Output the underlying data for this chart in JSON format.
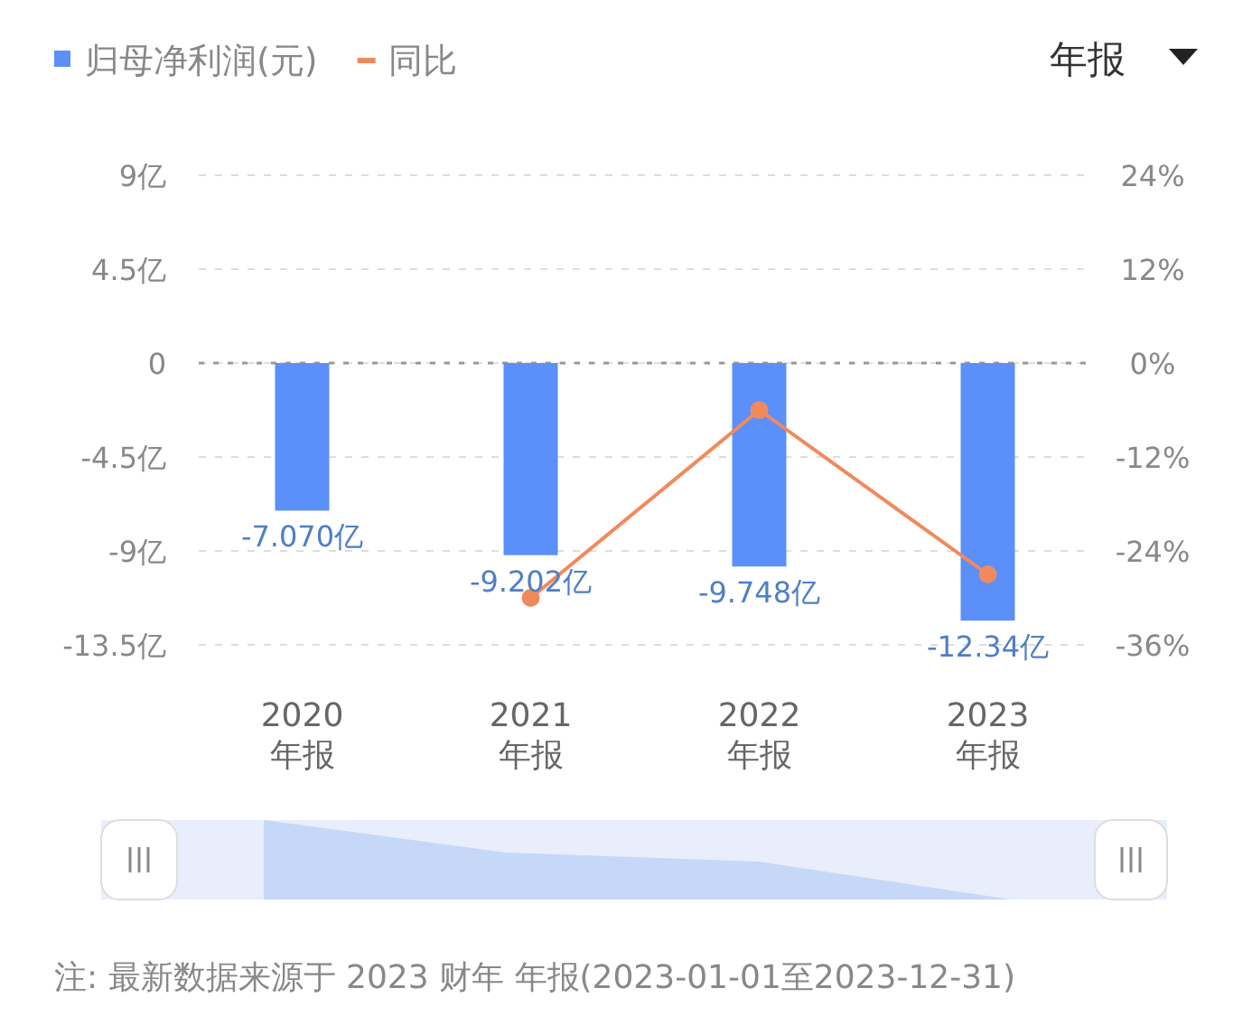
{
  "chart_data": {
    "type": "bar",
    "categories": [
      "2020 年报",
      "2021 年报",
      "2022 年报",
      "2023 年报"
    ],
    "series": [
      {
        "name": "归母净利润(元)",
        "color": "#5b8ff9",
        "values": [
          -7.07,
          -9.202,
          -9.748,
          -12.34
        ],
        "value_labels": [
          "-7.070亿",
          "-9.202亿",
          "-9.748亿",
          "-12.34亿"
        ]
      },
      {
        "name": "同比",
        "type": "line",
        "axis": "y2",
        "color": "#f08a5d",
        "values": [
          null,
          -30,
          -6,
          -27
        ],
        "marker": "circle"
      }
    ],
    "ylim": [
      -13.5,
      9
    ],
    "yticks": [
      {
        "value": 9,
        "label": "9亿"
      },
      {
        "value": 4.5,
        "label": "4.5亿"
      },
      0,
      {
        "value": -4.5,
        "label": "-4.5亿"
      },
      {
        "value": -9,
        "label": "-9亿"
      },
      {
        "value": -13.5,
        "label": "-13.5亿"
      }
    ],
    "y2lim": [
      -36,
      24
    ],
    "y2ticks": [
      {
        "value": 24,
        "label": "24%"
      },
      {
        "value": 12,
        "label": "12%"
      },
      {
        "value": 0,
        "label": "0%"
      },
      {
        "value": -12,
        "label": "-12%"
      },
      {
        "value": -24,
        "label": "-24%"
      },
      {
        "value": -36,
        "label": "-36%"
      }
    ],
    "grid": "y",
    "ref_lines": [
      {
        "axis": "y",
        "value": 0,
        "color": "#999999",
        "line_style": "dotted"
      }
    ],
    "legend": "top left",
    "annotations": [
      "年报",
      "注: 最新数据来源于 2023 财年 年报(2023-01-01至2023-12-31)"
    ]
  }
}
